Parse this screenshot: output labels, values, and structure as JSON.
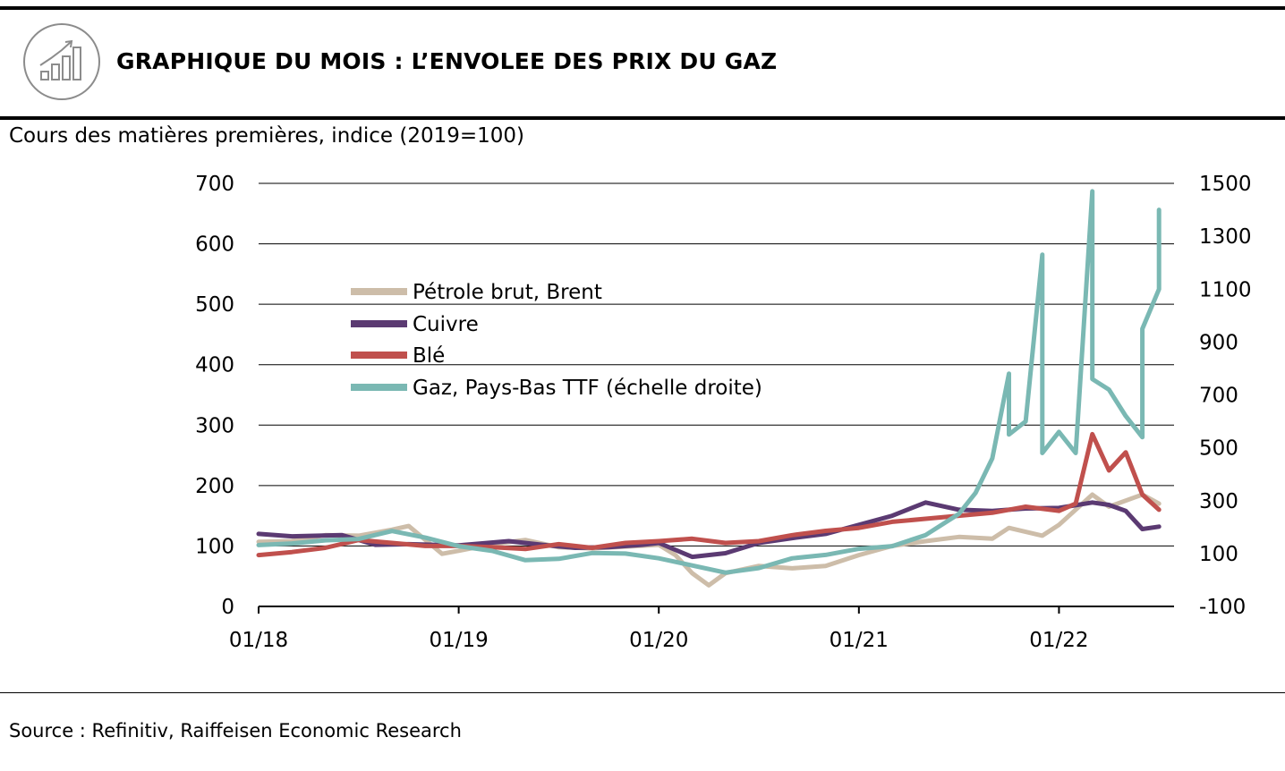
{
  "header": {
    "title": "GRAPHIQUE DU MOIS : L’ENVOLEE DES PRIX DU GAZ",
    "icon": "bar-chart-growth-icon"
  },
  "footer": {
    "source": "Source : Refinitiv, Raiffeisen Economic Research"
  },
  "chart_data": {
    "type": "line",
    "title": "GRAPHIQUE DU MOIS : L’ENVOLEE DES PRIX DU GAZ",
    "subtitle": "Cours des matières premières, indice (2019=100)",
    "x_tick_labels": [
      "01/18",
      "01/19",
      "01/20",
      "01/21",
      "01/22"
    ],
    "x_range": [
      "2018-01",
      "2022-07"
    ],
    "y_left": {
      "range": [
        0,
        700
      ],
      "ticks": [
        "0",
        "100",
        "200",
        "300",
        "400",
        "500",
        "600",
        "700"
      ]
    },
    "y_right": {
      "range": [
        -100,
        1500
      ],
      "ticks": [
        "-100",
        "100",
        "300",
        "500",
        "700",
        "900",
        "1100",
        "1300",
        "1500"
      ]
    },
    "grid": "horizontal",
    "legend_position": "upper-left",
    "series": [
      {
        "name": "Pétrole brut, Brent",
        "axis": "left",
        "color": "#cdbda9",
        "x": [
          "2018-01",
          "2018-03",
          "2018-05",
          "2018-07",
          "2018-09",
          "2018-10",
          "2018-12",
          "2019-01",
          "2019-03",
          "2019-05",
          "2019-07",
          "2019-09",
          "2019-11",
          "2020-01",
          "2020-02",
          "2020-03",
          "2020-04",
          "2020-05",
          "2020-07",
          "2020-09",
          "2020-11",
          "2021-01",
          "2021-03",
          "2021-05",
          "2021-07",
          "2021-09",
          "2021-10",
          "2021-12",
          "2022-01",
          "2022-03",
          "2022-04",
          "2022-06",
          "2022-07"
        ],
        "values": [
          107,
          108,
          118,
          117,
          127,
          133,
          87,
          92,
          103,
          110,
          98,
          96,
          99,
          102,
          85,
          55,
          35,
          55,
          67,
          63,
          67,
          85,
          100,
          108,
          115,
          112,
          130,
          117,
          135,
          185,
          165,
          185,
          170
        ]
      },
      {
        "name": "Cuivre",
        "axis": "left",
        "color": "#5b3a72",
        "x": [
          "2018-01",
          "2018-03",
          "2018-06",
          "2018-08",
          "2018-10",
          "2019-01",
          "2019-04",
          "2019-06",
          "2019-08",
          "2019-10",
          "2019-12",
          "2020-01",
          "2020-03",
          "2020-05",
          "2020-07",
          "2020-09",
          "2020-11",
          "2021-01",
          "2021-03",
          "2021-05",
          "2021-07",
          "2021-09",
          "2021-11",
          "2022-01",
          "2022-03",
          "2022-04",
          "2022-05",
          "2022-06",
          "2022-07"
        ],
        "values": [
          120,
          116,
          118,
          102,
          103,
          101,
          108,
          102,
          97,
          98,
          102,
          105,
          82,
          88,
          105,
          113,
          120,
          135,
          150,
          172,
          160,
          158,
          162,
          163,
          172,
          168,
          158,
          128,
          132
        ]
      },
      {
        "name": "Blé",
        "axis": "left",
        "color": "#c0504d",
        "x": [
          "2018-01",
          "2018-03",
          "2018-05",
          "2018-07",
          "2018-09",
          "2018-11",
          "2019-01",
          "2019-03",
          "2019-05",
          "2019-07",
          "2019-09",
          "2019-11",
          "2020-01",
          "2020-03",
          "2020-05",
          "2020-07",
          "2020-09",
          "2020-11",
          "2021-01",
          "2021-03",
          "2021-05",
          "2021-07",
          "2021-09",
          "2021-11",
          "2022-01",
          "2022-02",
          "2022-03",
          "2022-04",
          "2022-05",
          "2022-06",
          "2022-07"
        ],
        "values": [
          85,
          90,
          97,
          110,
          105,
          100,
          100,
          98,
          95,
          103,
          97,
          105,
          108,
          112,
          105,
          108,
          118,
          125,
          130,
          140,
          145,
          150,
          155,
          165,
          158,
          170,
          285,
          225,
          255,
          185,
          160
        ]
      },
      {
        "name": "Gaz, Pays-Bas TTF (échelle droite)",
        "axis": "right",
        "color": "#7ab8b3",
        "x": [
          "2018-01",
          "2018-03",
          "2018-05",
          "2018-07",
          "2018-09",
          "2018-11",
          "2019-01",
          "2019-03",
          "2019-05",
          "2019-07",
          "2019-09",
          "2019-11",
          "2020-01",
          "2020-03",
          "2020-05",
          "2020-07",
          "2020-09",
          "2020-11",
          "2021-01",
          "2021-03",
          "2021-05",
          "2021-07",
          "2021-08",
          "2021-09",
          "2021-10",
          "2021-10",
          "2021-11",
          "2021-12",
          "2021-12",
          "2022-01",
          "2022-02",
          "2022-03",
          "2022-03",
          "2022-04",
          "2022-05",
          "2022-06",
          "2022-06",
          "2022-07",
          "2022-07"
        ],
        "values": [
          132,
          138,
          150,
          155,
          185,
          160,
          128,
          110,
          75,
          80,
          102,
          100,
          82,
          55,
          28,
          45,
          82,
          95,
          118,
          128,
          170,
          250,
          330,
          460,
          780,
          550,
          600,
          1230,
          480,
          560,
          480,
          1470,
          760,
          720,
          620,
          540,
          950,
          1100,
          1400
        ]
      }
    ]
  }
}
